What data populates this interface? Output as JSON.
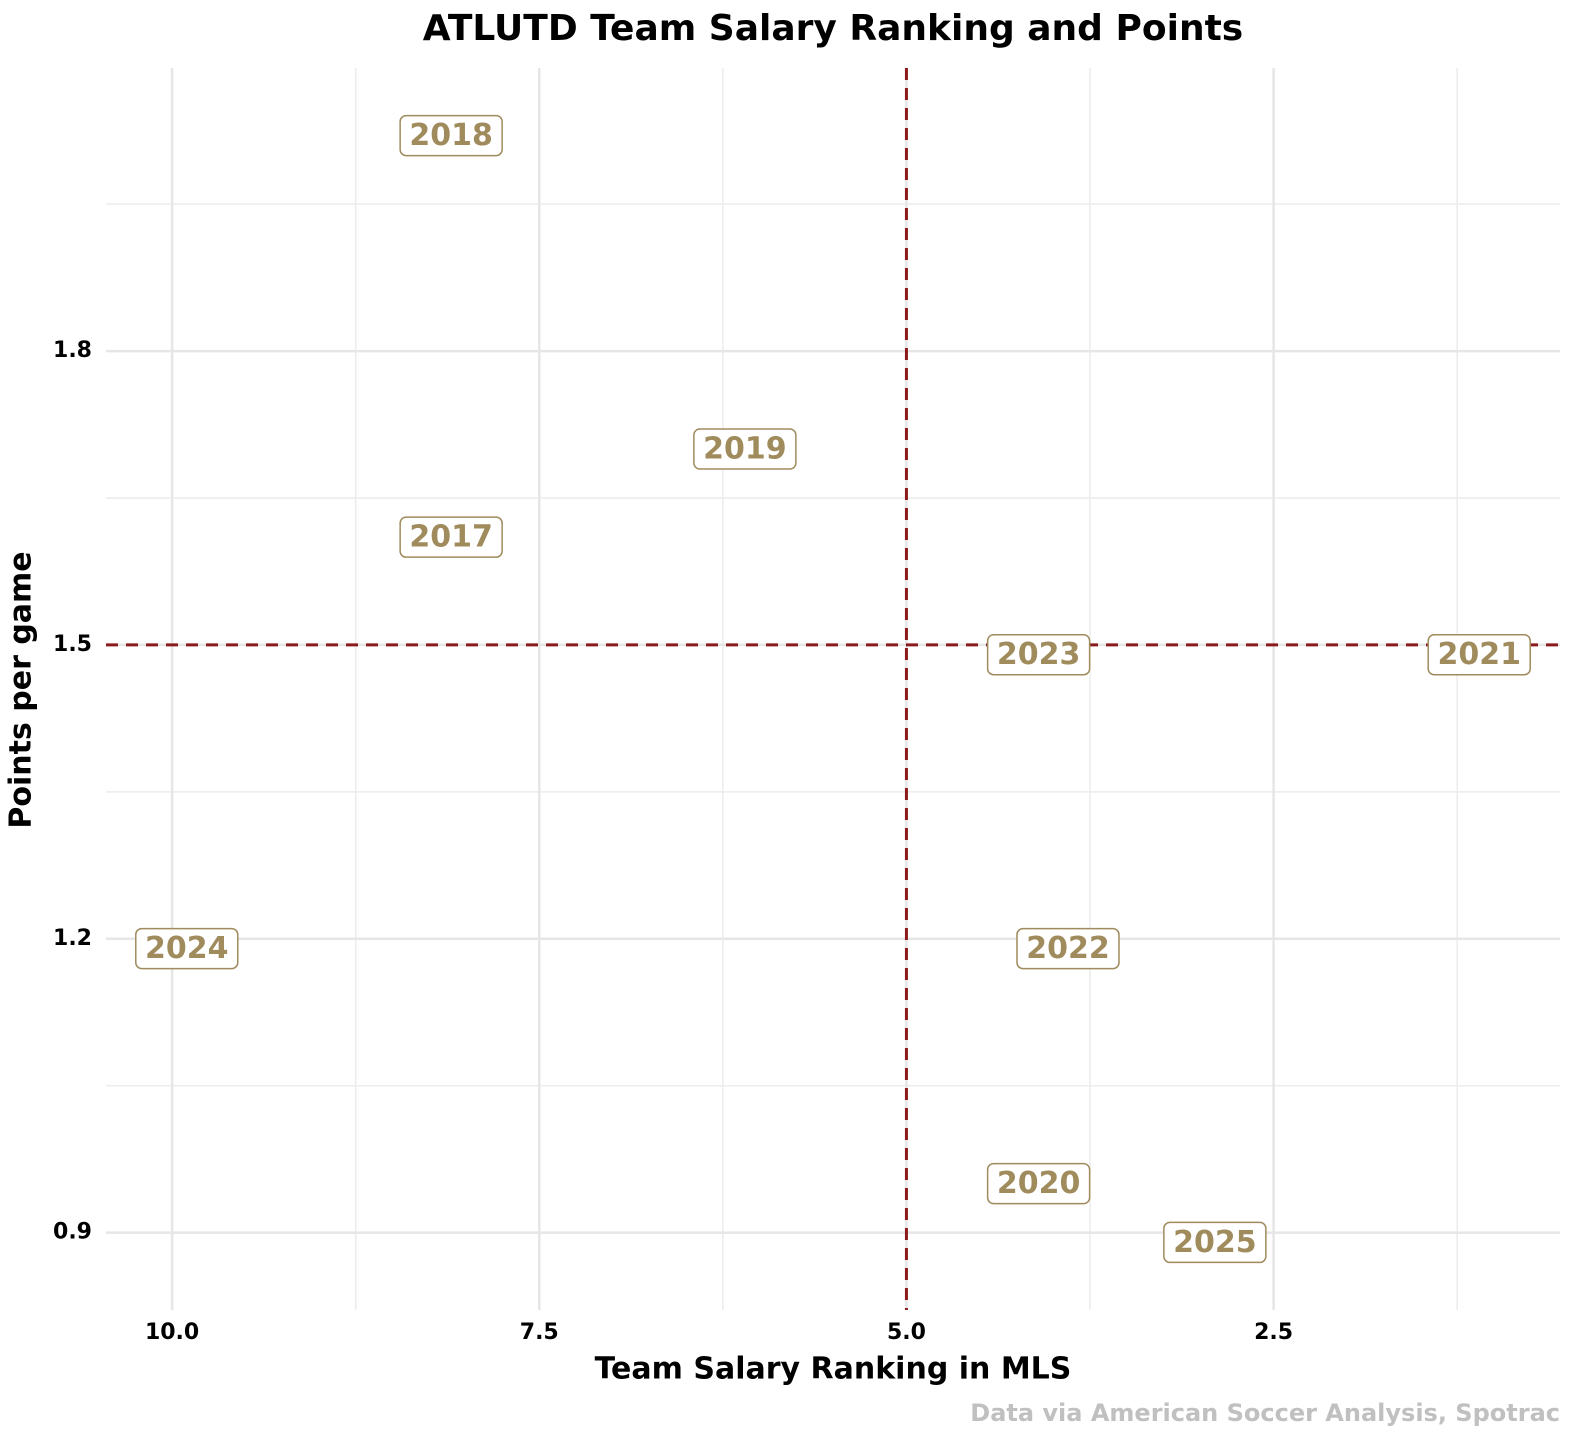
{
  "chart_data": {
    "type": "scatter",
    "title": "ATLUTD Team Salary Ranking and Points",
    "x_label": "Team Salary Ranking in MLS",
    "y_label": "Points per game",
    "caption": "Data via American Soccer Analysis, Spotrac",
    "labels": [
      "2018",
      "2019",
      "2017",
      "2023",
      "2021",
      "2024",
      "2022",
      "2020",
      "2025"
    ],
    "x": [
      8.1,
      6.1,
      8.1,
      4.1,
      1.1,
      9.9,
      3.9,
      4.1,
      2.9
    ],
    "values": [
      2.02,
      1.7,
      1.61,
      1.49,
      1.49,
      1.19,
      1.19,
      0.95,
      0.89
    ],
    "color": "#a08b5d",
    "xlim": [
      10.45,
      0.55
    ],
    "ylim": [
      0.821,
      2.089
    ],
    "xticks": [
      {
        "value": 10,
        "label": "10.0"
      },
      7.5,
      {
        "value": 5,
        "label": "5.0"
      },
      2.5
    ],
    "yticks": [
      0.9,
      1.2,
      1.5,
      1.8
    ],
    "minor_xticks": [
      8.75,
      6.25,
      3.75,
      1.25
    ],
    "minor_yticks": [
      1.05,
      1.35,
      1.65,
      1.95
    ],
    "hline": 1.5,
    "vline": 5,
    "ref_color": "#8b1a1a",
    "grid": true
  }
}
